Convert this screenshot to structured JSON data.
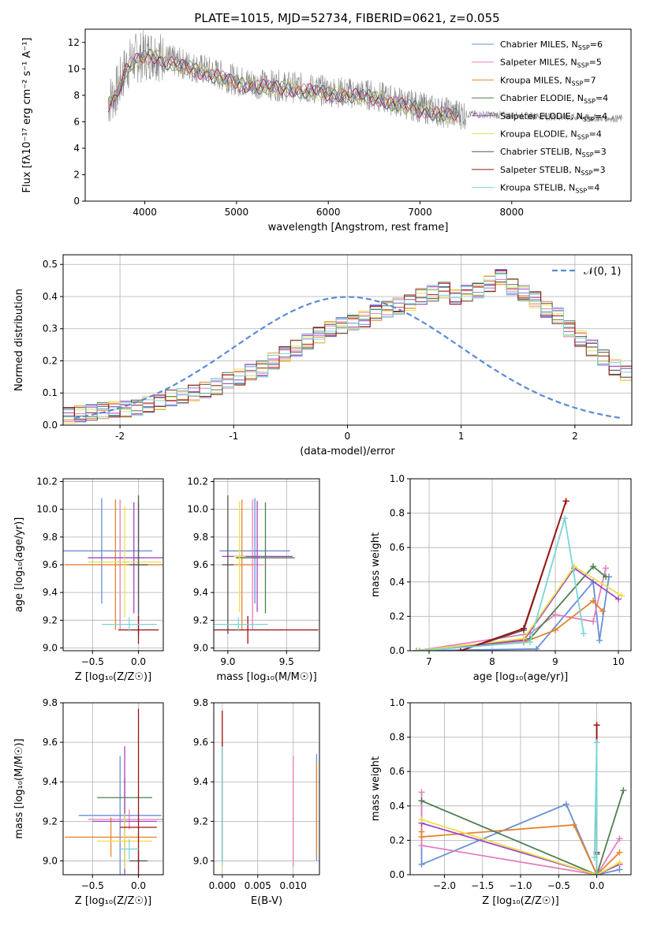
{
  "title": "PLATE=1015, MJD=52734, FIBERID=0621, z=0.055",
  "colors": {
    "chabrier_miles": "#6a8fd6",
    "salpeter_miles": "#e47fbf",
    "kroupa_miles": "#e8832c",
    "chabrier_elodie": "#4f7f50",
    "salpeter_elodie": "#a347c4",
    "kroupa_elodie": "#e8e04a",
    "chabrier_stelib": "#555555",
    "salpeter_stelib": "#a01010",
    "kroupa_stelib": "#7ad6d6",
    "data": "#888888",
    "gaussian": "#5b8bd6"
  },
  "legend": {
    "entries": [
      {
        "label": "Chabrier MILES, N",
        "sub": "SSP",
        "tail": "=6",
        "color": "#6a8fd6"
      },
      {
        "label": "Salpeter MILES, N",
        "sub": "SSP",
        "tail": "=5",
        "color": "#e47fbf"
      },
      {
        "label": "Kroupa MILES, N",
        "sub": "SSP",
        "tail": "=7",
        "color": "#e8832c"
      },
      {
        "label": "Chabrier ELODIE, N",
        "sub": "SSP",
        "tail": "=4",
        "color": "#4f7f50"
      },
      {
        "label": "Salpeter ELODIE, N",
        "sub": "SSP",
        "tail": "=4",
        "color": "#a347c4"
      },
      {
        "label": "Kroupa ELODIE, N",
        "sub": "SSP",
        "tail": "=4",
        "color": "#e8e04a"
      },
      {
        "label": "Chabrier STELIB, N",
        "sub": "SSP",
        "tail": "=3",
        "color": "#555555"
      },
      {
        "label": "Salpeter STELIB, N",
        "sub": "SSP",
        "tail": "=3",
        "color": "#a01010"
      },
      {
        "label": "Kroupa STELIB, N",
        "sub": "SSP",
        "tail": "=4",
        "color": "#7ad6d6"
      }
    ],
    "gaussian_label": "𝒩(0, 1)"
  },
  "chart_data": [
    {
      "id": "spectrum",
      "type": "line",
      "xlabel": "wavelength [Angstrom, rest frame]",
      "ylabel": "Flux [fλ10⁻¹⁷ erg cm⁻² s⁻¹ A⁻¹]",
      "xlim": [
        3350,
        9300
      ],
      "ylim": [
        0,
        13
      ],
      "xticks": [
        4000,
        5000,
        6000,
        7000,
        8000
      ],
      "yticks": [
        0,
        2,
        4,
        6,
        8,
        10,
        12
      ],
      "grid": false,
      "continuum_x": [
        3600,
        3700,
        3800,
        3900,
        4000,
        4100,
        4200,
        4400,
        4600,
        4800,
        5000,
        5200,
        5500,
        5800,
        6000,
        6200,
        6500,
        6700,
        7000,
        7200,
        7400
      ],
      "continuum_y": [
        7.5,
        8.4,
        10.2,
        10.8,
        11.0,
        11.2,
        10.8,
        10.4,
        10.0,
        9.6,
        9.1,
        8.9,
        8.7,
        8.5,
        8.3,
        8.2,
        8.0,
        7.6,
        7.1,
        6.8,
        6.6
      ],
      "data_range": [
        3600,
        9200
      ]
    },
    {
      "id": "residuals",
      "type": "histogram",
      "xlabel": "(data-model)/error",
      "ylabel": "Normed distribution",
      "xlim": [
        -2.5,
        2.5
      ],
      "ylim": [
        0,
        0.53
      ],
      "xticks": [
        -2,
        -1,
        0,
        1,
        2
      ],
      "yticks": [
        0.0,
        0.1,
        0.2,
        0.3,
        0.4,
        0.5
      ],
      "grid": true,
      "bin_edges_start": -2.5,
      "bin_width": 0.1,
      "counts": [
        0.03,
        0.035,
        0.04,
        0.045,
        0.05,
        0.05,
        0.055,
        0.065,
        0.07,
        0.085,
        0.09,
        0.1,
        0.11,
        0.12,
        0.14,
        0.15,
        0.165,
        0.175,
        0.2,
        0.22,
        0.24,
        0.26,
        0.28,
        0.3,
        0.31,
        0.32,
        0.33,
        0.35,
        0.36,
        0.37,
        0.38,
        0.4,
        0.41,
        0.42,
        0.4,
        0.41,
        0.42,
        0.44,
        0.46,
        0.43,
        0.41,
        0.39,
        0.36,
        0.34,
        0.3,
        0.27,
        0.24,
        0.21,
        0.18,
        0.16
      ],
      "gaussian": "N(0,1)"
    },
    {
      "id": "age_vs_Z",
      "type": "scatter",
      "xlabel": "Z [log₁₀(Z/Z☉)]",
      "ylabel": "age  [log₁₀(age/yr)]",
      "xlim": [
        -0.82,
        0.27
      ],
      "ylim": [
        8.98,
        10.22
      ],
      "xticks": [
        -0.5,
        0.0
      ],
      "yticks": [
        9.0,
        9.2,
        9.4,
        9.6,
        9.8,
        10.0,
        10.2
      ],
      "grid": true,
      "points": [
        {
          "x": -0.4,
          "y": 9.7,
          "xerr": 0.55,
          "yerr": 0.38,
          "color": "#6a8fd6"
        },
        {
          "x": -0.2,
          "y": 9.6,
          "xerr": 0.6,
          "yerr": 0.47,
          "color": "#e47fbf"
        },
        {
          "x": -0.25,
          "y": 9.6,
          "xerr": 0.55,
          "yerr": 0.47,
          "color": "#e8832c"
        },
        {
          "x": 0.0,
          "y": 9.65,
          "xerr": 0.05,
          "yerr": 0.4,
          "color": "#4f7f50"
        },
        {
          "x": -0.05,
          "y": 9.65,
          "xerr": 0.5,
          "yerr": 0.4,
          "color": "#a347c4"
        },
        {
          "x": -0.15,
          "y": 9.62,
          "xerr": 0.4,
          "yerr": 0.4,
          "color": "#e8e04a"
        },
        {
          "x": 0.0,
          "y": 9.6,
          "xerr": 0.1,
          "yerr": 0.5,
          "color": "#555555"
        },
        {
          "x": 0.0,
          "y": 9.13,
          "xerr": 0.22,
          "yerr": 0.1,
          "color": "#a01010"
        },
        {
          "x": -0.1,
          "y": 9.17,
          "xerr": 0.3,
          "yerr": 0.05,
          "color": "#7ad6d6"
        }
      ]
    },
    {
      "id": "age_vs_mass",
      "type": "scatter",
      "xlabel": "mass [log₁₀(M/M☉)]",
      "ylabel": "",
      "xlim": [
        8.88,
        9.78
      ],
      "ylim": [
        8.98,
        10.22
      ],
      "xticks": [
        9.0,
        9.5
      ],
      "yticks": [
        9.0,
        9.2,
        9.4,
        9.6,
        9.8,
        10.0,
        10.2
      ],
      "grid": true,
      "points": [
        {
          "x": 9.23,
          "y": 9.7,
          "xerr": 0.3,
          "yerr": 0.38,
          "color": "#6a8fd6"
        },
        {
          "x": 9.21,
          "y": 9.6,
          "xerr": 0.1,
          "yerr": 0.47,
          "color": "#e47fbf"
        },
        {
          "x": 9.12,
          "y": 9.6,
          "xerr": 0.1,
          "yerr": 0.47,
          "color": "#e8832c"
        },
        {
          "x": 9.32,
          "y": 9.65,
          "xerr": 0.25,
          "yerr": 0.4,
          "color": "#4f7f50"
        },
        {
          "x": 9.25,
          "y": 9.66,
          "xerr": 0.3,
          "yerr": 0.4,
          "color": "#a347c4"
        },
        {
          "x": 9.1,
          "y": 9.66,
          "xerr": 0.05,
          "yerr": 0.4,
          "color": "#e8e04a"
        },
        {
          "x": 9.0,
          "y": 9.6,
          "xerr": 0.05,
          "yerr": 0.5,
          "color": "#555555"
        },
        {
          "x": 9.17,
          "y": 9.13,
          "xerr": 0.6,
          "yerr": 0.1,
          "color": "#a01010"
        },
        {
          "x": 9.09,
          "y": 9.17,
          "xerr": 0.25,
          "yerr": 0.05,
          "color": "#7ad6d6"
        }
      ]
    },
    {
      "id": "massweight_vs_age",
      "type": "line",
      "xlabel": "age  [log₁₀(age/yr)]",
      "ylabel": "mass weight",
      "xlim": [
        6.7,
        10.2
      ],
      "ylim": [
        0,
        1
      ],
      "xticks": [
        7,
        8,
        9,
        10
      ],
      "yticks": [
        0.0,
        0.2,
        0.4,
        0.6,
        0.8,
        1.0
      ],
      "grid": true,
      "series": [
        {
          "color": "#6a8fd6",
          "x": [
            6.8,
            8.7,
            9.6,
            9.7,
            9.85
          ],
          "y": [
            0.0,
            0.01,
            0.4,
            0.06,
            0.43
          ]
        },
        {
          "color": "#e47fbf",
          "x": [
            6.8,
            8.6,
            9.0,
            9.6,
            9.8
          ],
          "y": [
            0.0,
            0.1,
            0.21,
            0.17,
            0.48
          ]
        },
        {
          "color": "#e8832c",
          "x": [
            6.85,
            8.5,
            9.0,
            9.6,
            9.75
          ],
          "y": [
            0.0,
            0.05,
            0.12,
            0.29,
            0.23
          ]
        },
        {
          "color": "#4f7f50",
          "x": [
            6.8,
            8.6,
            9.6,
            9.8
          ],
          "y": [
            0.0,
            0.07,
            0.49,
            0.43
          ]
        },
        {
          "color": "#a347c4",
          "x": [
            6.8,
            8.5,
            9.3,
            10.0
          ],
          "y": [
            0.0,
            0.06,
            0.48,
            0.3
          ]
        },
        {
          "color": "#e8e04a",
          "x": [
            6.8,
            8.5,
            9.3,
            10.05
          ],
          "y": [
            0.0,
            0.07,
            0.49,
            0.32
          ]
        },
        {
          "color": "#555555",
          "x": [
            7.5,
            8.5,
            9.17
          ],
          "y": [
            0.0,
            0.12,
            0.87
          ]
        },
        {
          "color": "#a01010",
          "x": [
            7.5,
            8.5,
            9.17
          ],
          "y": [
            0.0,
            0.13,
            0.87
          ]
        },
        {
          "color": "#7ad6d6",
          "x": [
            6.85,
            8.6,
            9.15,
            9.45
          ],
          "y": [
            0.0,
            0.05,
            0.77,
            0.1
          ]
        }
      ]
    },
    {
      "id": "mass_vs_Z",
      "type": "scatter",
      "xlabel": "Z [log₁₀(Z/Z☉)]",
      "ylabel": "mass [log₁₀(M/M☉)]",
      "xlim": [
        -0.82,
        0.27
      ],
      "ylim": [
        8.93,
        9.8
      ],
      "xticks": [
        -0.5,
        0.0
      ],
      "yticks": [
        9.0,
        9.2,
        9.4,
        9.6,
        9.8
      ],
      "grid": true,
      "points": [
        {
          "x": -0.2,
          "y": 9.23,
          "xerr": 0.45,
          "yerr": 0.3,
          "color": "#6a8fd6"
        },
        {
          "x": -0.1,
          "y": 9.21,
          "xerr": 0.45,
          "yerr": 0.05,
          "color": "#e47fbf"
        },
        {
          "x": -0.3,
          "y": 9.12,
          "xerr": 0.5,
          "yerr": 0.1,
          "color": "#e8832c"
        },
        {
          "x": -0.15,
          "y": 9.32,
          "xerr": 0.3,
          "yerr": 0.1,
          "color": "#4f7f50"
        },
        {
          "x": -0.15,
          "y": 9.2,
          "xerr": 0.35,
          "yerr": 0.38,
          "color": "#a347c4"
        },
        {
          "x": -0.15,
          "y": 9.1,
          "xerr": 0.3,
          "yerr": 0.14,
          "color": "#e8e04a"
        },
        {
          "x": 0.0,
          "y": 9.0,
          "xerr": 0.1,
          "yerr": 0.05,
          "color": "#555555"
        },
        {
          "x": 0.0,
          "y": 9.17,
          "xerr": 0.2,
          "yerr": 0.6,
          "color": "#a01010"
        },
        {
          "x": -0.1,
          "y": 9.06,
          "xerr": 0.1,
          "yerr": 0.05,
          "color": "#7ad6d6"
        }
      ]
    },
    {
      "id": "mass_vs_ebv",
      "type": "scatter",
      "xlabel": "E(B-V)",
      "ylabel": "",
      "xlim": [
        -0.0012,
        0.0137
      ],
      "ylim": [
        8.93,
        9.8
      ],
      "xticks": [
        0.0,
        0.005,
        0.01
      ],
      "xtick_labels": [
        "0.000",
        "0.005",
        "0.010"
      ],
      "yticks": [
        9.0,
        9.2,
        9.4,
        9.6,
        9.8
      ],
      "grid": true,
      "points": [
        {
          "x": 0.0133,
          "y": 9.27,
          "xerr": 0,
          "yerr": 0.27,
          "color": "#6a8fd6"
        },
        {
          "x": 0.01,
          "y": 9.25,
          "xerr": 0,
          "yerr": 0.28,
          "color": "#e47fbf"
        },
        {
          "x": 0.0133,
          "y": 9.26,
          "xerr": 0,
          "yerr": 0.24,
          "color": "#e8832c"
        },
        {
          "x": 0.0,
          "y": 9.28,
          "xerr": 0,
          "yerr": 0.28,
          "color": "#4f7f50"
        },
        {
          "x": 0.0,
          "y": 9.3,
          "xerr": 0,
          "yerr": 0.3,
          "color": "#a347c4"
        },
        {
          "x": 0.0,
          "y": 9.27,
          "xerr": 0,
          "yerr": 0.3,
          "color": "#e8e04a"
        },
        {
          "x": 0.0,
          "y": 9.3,
          "xerr": 0,
          "yerr": 0.3,
          "color": "#555555"
        },
        {
          "x": 0.0,
          "y": 9.38,
          "xerr": 0,
          "yerr": 0.38,
          "color": "#a01010"
        },
        {
          "x": 0.0,
          "y": 9.28,
          "xerr": 0,
          "yerr": 0.3,
          "color": "#7ad6d6"
        }
      ]
    },
    {
      "id": "massweight_vs_Z",
      "type": "line",
      "xlabel": "Z [log₁₀(Z/Z☉)]",
      "ylabel": "mass weight",
      "xlim": [
        -2.45,
        0.45
      ],
      "ylim": [
        0,
        1
      ],
      "xticks": [
        -2.0,
        -1.5,
        -1.0,
        -0.5,
        0.0
      ],
      "yticks": [
        0.0,
        0.2,
        0.4,
        0.6,
        0.8,
        1.0
      ],
      "grid": true,
      "series": [
        {
          "color": "#6a8fd6",
          "x": [
            -2.3,
            -2.3,
            -0.4,
            0.0,
            0.3
          ],
          "y": [
            0.43,
            0.06,
            0.41,
            0.0,
            0.03
          ]
        },
        {
          "color": "#e47fbf",
          "x": [
            -2.3,
            -2.3,
            0.0,
            0.3
          ],
          "y": [
            0.48,
            0.17,
            0.0,
            0.21
          ]
        },
        {
          "color": "#e8832c",
          "x": [
            -2.3,
            -2.3,
            -0.3,
            0.0,
            0.3
          ],
          "y": [
            0.25,
            0.22,
            0.29,
            0.0,
            0.13
          ]
        },
        {
          "color": "#4f7f50",
          "x": [
            -2.3,
            0.0,
            0.35
          ],
          "y": [
            0.43,
            0.0,
            0.49
          ]
        },
        {
          "color": "#a347c4",
          "x": [
            -2.3,
            0.0,
            0.3
          ],
          "y": [
            0.3,
            0.0,
            0.06
          ]
        },
        {
          "color": "#e8e04a",
          "x": [
            -2.3,
            0.0,
            0.3
          ],
          "y": [
            0.32,
            0.0,
            0.07
          ]
        },
        {
          "color": "#555555",
          "x": [
            0.0,
            0.0,
            0.0
          ],
          "y": [
            0.87,
            0.12,
            0.0
          ]
        },
        {
          "color": "#a01010",
          "x": [
            0.0,
            0.0,
            0.0
          ],
          "y": [
            0.87,
            0.13,
            0.0
          ]
        },
        {
          "color": "#7ad6d6",
          "x": [
            -0.03,
            0.0,
            0.0
          ],
          "y": [
            0.1,
            0.77,
            0.0
          ]
        }
      ]
    }
  ]
}
